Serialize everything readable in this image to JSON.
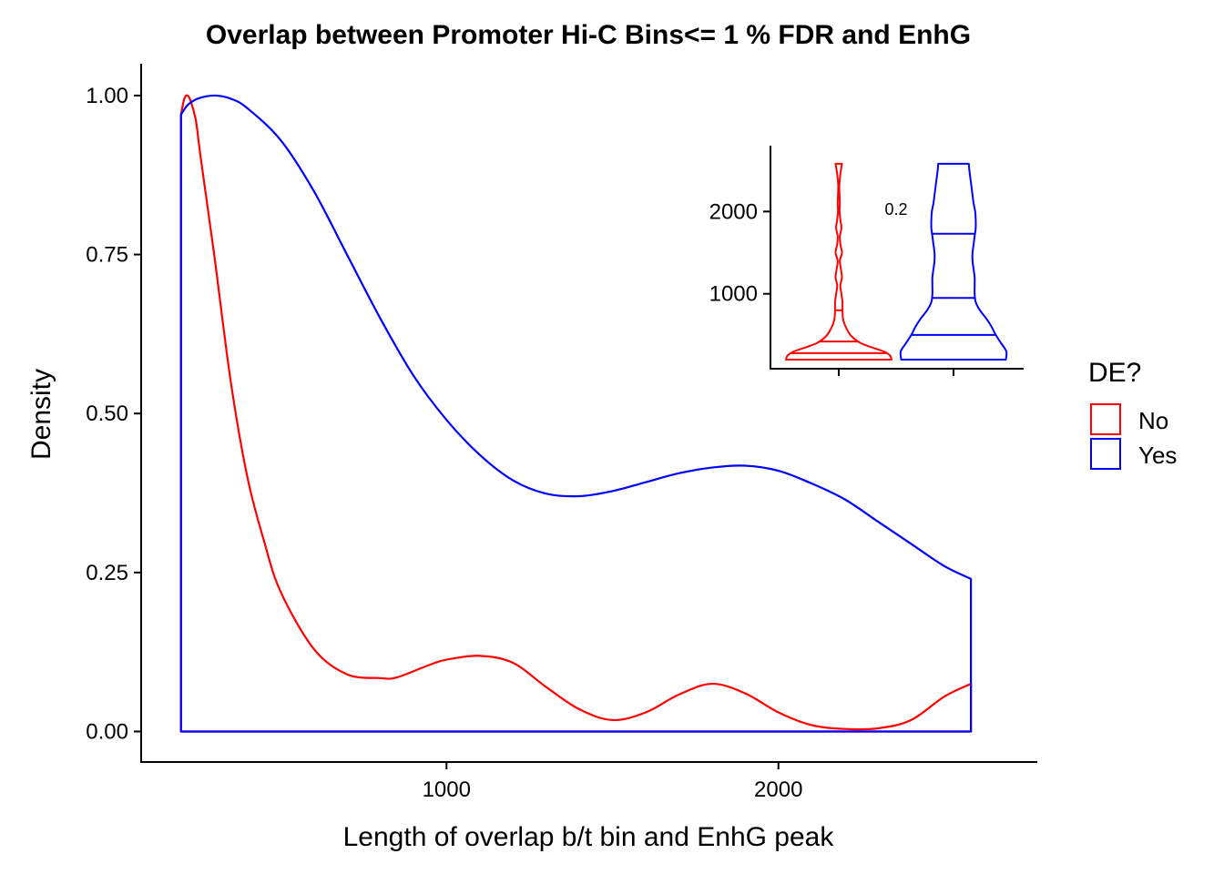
{
  "chart_data": [
    {
      "type": "area",
      "title": "Overlap between Promoter Hi-C Bins<= 1 % FDR and EnhG",
      "xlabel": "Length of overlap b/t bin and EnhG peak",
      "ylabel": "Density",
      "xlim": [
        80,
        2780
      ],
      "ylim": [
        -0.048,
        1.05
      ],
      "x_ticks": [
        1000,
        2000
      ],
      "x_tick_labels": [
        "1000",
        "2000"
      ],
      "y_ticks": [
        0,
        0.25,
        0.5,
        0.75,
        1.0
      ],
      "y_tick_labels": [
        "0.00",
        "0.25",
        "0.50",
        "0.75",
        "1.00"
      ],
      "grid": false,
      "legend": {
        "title": "DE?",
        "placement": "right",
        "entries": [
          {
            "label": "No",
            "color": "#FF0000"
          },
          {
            "label": "Yes",
            "color": "#0000FF"
          }
        ]
      },
      "series": [
        {
          "name": "No",
          "color": "#FF0000",
          "x": [
            200,
            210,
            220,
            230,
            245,
            260,
            300,
            350,
            400,
            450,
            500,
            600,
            700,
            800,
            850,
            950,
            1000,
            1100,
            1200,
            1300,
            1400,
            1500,
            1600,
            1700,
            1800,
            1900,
            2000,
            2100,
            2200,
            2300,
            2400,
            2500,
            2580
          ],
          "y": [
            0.97,
            0.995,
            1.0,
            0.99,
            0.96,
            0.9,
            0.75,
            0.55,
            0.4,
            0.3,
            0.22,
            0.13,
            0.09,
            0.084,
            0.085,
            0.105,
            0.113,
            0.119,
            0.108,
            0.07,
            0.035,
            0.018,
            0.03,
            0.058,
            0.075,
            0.06,
            0.03,
            0.01,
            0.004,
            0.005,
            0.018,
            0.055,
            0.075
          ]
        },
        {
          "name": "Yes",
          "color": "#0000FF",
          "x": [
            200,
            220,
            250,
            300,
            350,
            400,
            500,
            600,
            700,
            800,
            900,
            1000,
            1100,
            1200,
            1300,
            1400,
            1500,
            1600,
            1700,
            1800,
            1900,
            2000,
            2100,
            2200,
            2300,
            2400,
            2500,
            2580
          ],
          "y": [
            0.97,
            0.985,
            0.995,
            1.0,
            0.995,
            0.98,
            0.93,
            0.85,
            0.75,
            0.65,
            0.56,
            0.49,
            0.435,
            0.395,
            0.374,
            0.37,
            0.378,
            0.392,
            0.406,
            0.415,
            0.418,
            0.41,
            0.39,
            0.365,
            0.33,
            0.295,
            0.26,
            0.24
          ]
        }
      ]
    },
    {
      "type": "violin",
      "annotation": "0.2",
      "ylim": [
        90,
        2800
      ],
      "y_ticks": [
        1000,
        2000
      ],
      "y_tick_labels": [
        "1000",
        "2000"
      ],
      "groups": [
        {
          "name": "No",
          "color": "#FF0000",
          "quantiles": [
            280,
            420,
            800
          ],
          "profile": [
            [
              200,
              1.0
            ],
            [
              250,
              0.97
            ],
            [
              300,
              0.85
            ],
            [
              350,
              0.62
            ],
            [
              400,
              0.42
            ],
            [
              450,
              0.3
            ],
            [
              500,
              0.22
            ],
            [
              550,
              0.17
            ],
            [
              600,
              0.13
            ],
            [
              650,
              0.1
            ],
            [
              700,
              0.08
            ],
            [
              800,
              0.07
            ],
            [
              900,
              0.07
            ],
            [
              1000,
              0.05
            ],
            [
              1100,
              0.03
            ],
            [
              1200,
              0.06
            ],
            [
              1300,
              0.04
            ],
            [
              1400,
              0.02
            ],
            [
              1500,
              0.06
            ],
            [
              1600,
              0.03
            ],
            [
              1700,
              0.02
            ],
            [
              1800,
              0.05
            ],
            [
              1900,
              0.03
            ],
            [
              2000,
              0.015
            ],
            [
              2100,
              0.02
            ],
            [
              2200,
              0.015
            ],
            [
              2300,
              0.01
            ],
            [
              2400,
              0.02
            ],
            [
              2500,
              0.04
            ],
            [
              2580,
              0.06
            ]
          ]
        },
        {
          "name": "Yes",
          "color": "#0000FF",
          "quantiles": [
            500,
            950,
            1730
          ],
          "profile": [
            [
              200,
              0.99
            ],
            [
              300,
              1.0
            ],
            [
              400,
              0.9
            ],
            [
              500,
              0.8
            ],
            [
              600,
              0.72
            ],
            [
              700,
              0.62
            ],
            [
              800,
              0.5
            ],
            [
              900,
              0.42
            ],
            [
              1000,
              0.4
            ],
            [
              1100,
              0.4
            ],
            [
              1200,
              0.4
            ],
            [
              1300,
              0.38
            ],
            [
              1400,
              0.36
            ],
            [
              1500,
              0.36
            ],
            [
              1600,
              0.38
            ],
            [
              1700,
              0.4
            ],
            [
              1800,
              0.42
            ],
            [
              1900,
              0.42
            ],
            [
              2000,
              0.41
            ],
            [
              2100,
              0.38
            ],
            [
              2200,
              0.36
            ],
            [
              2300,
              0.34
            ],
            [
              2400,
              0.32
            ],
            [
              2500,
              0.3
            ],
            [
              2580,
              0.29
            ]
          ]
        }
      ]
    }
  ]
}
